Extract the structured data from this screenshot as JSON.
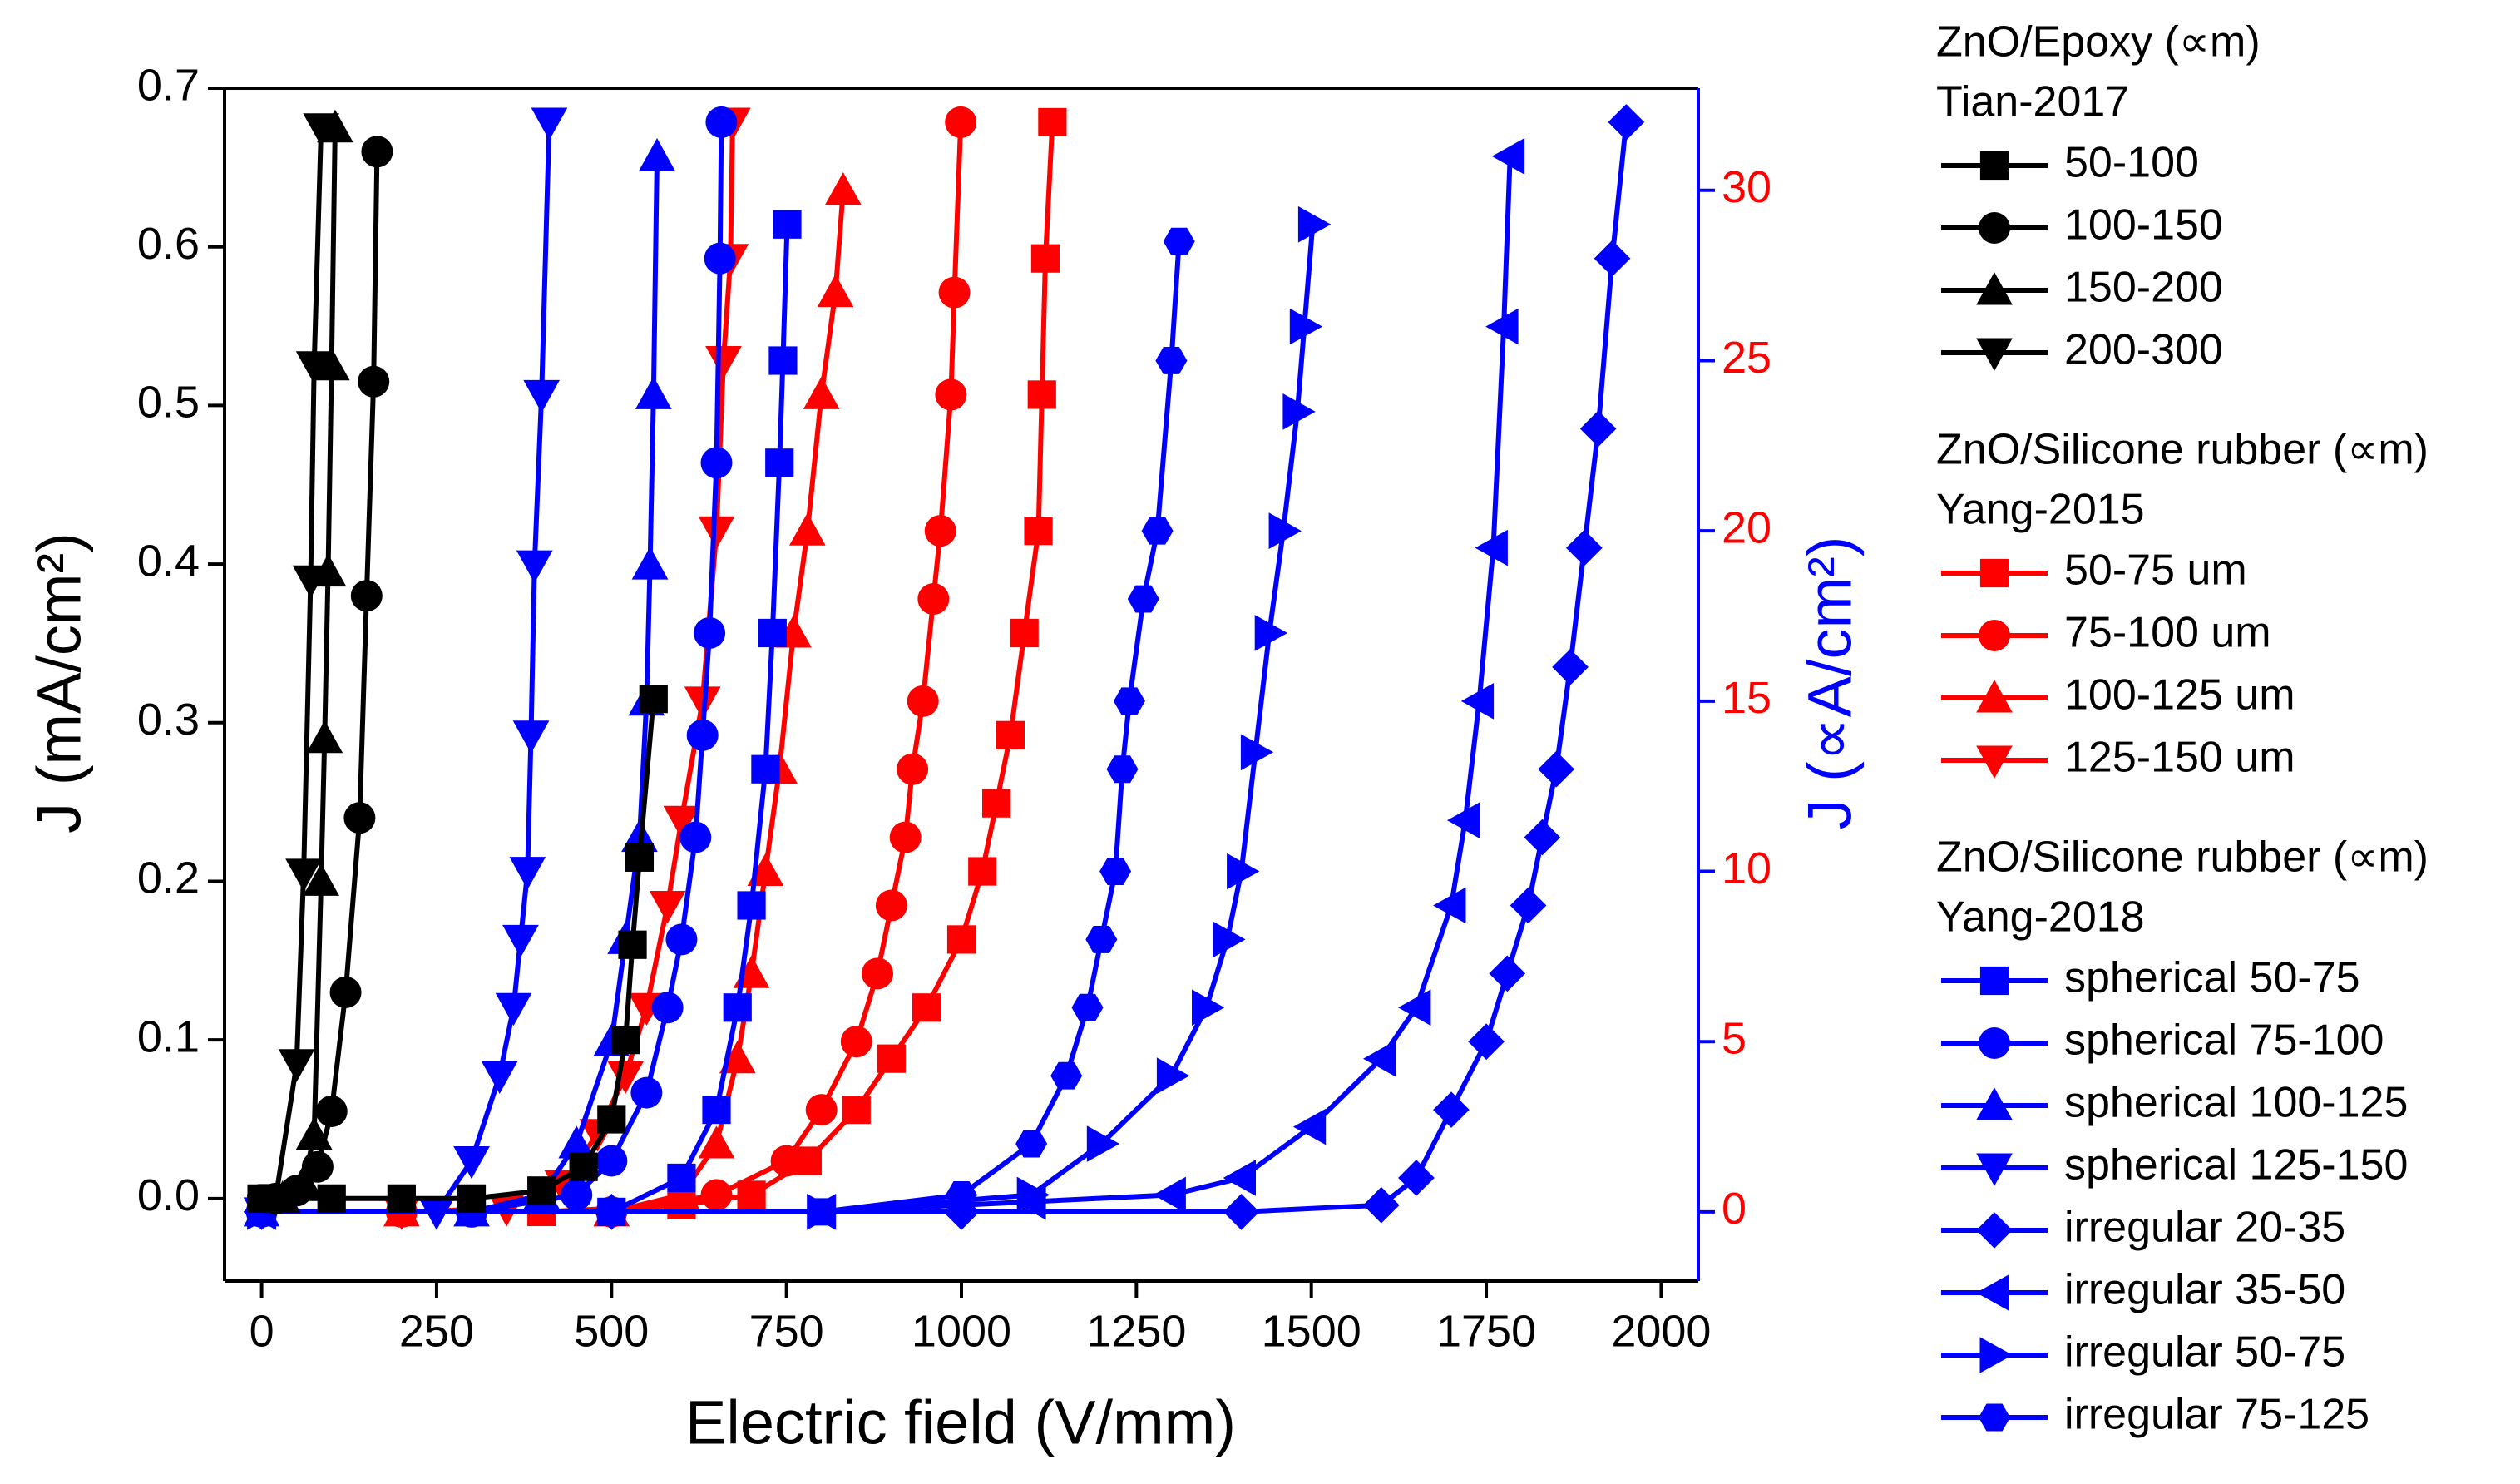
{
  "chart_data": {
    "type": "line",
    "x_label": "Electric field (V/mm)",
    "y_label": "J (mA/cm²)",
    "y2_label": "J (∝A/cm²)",
    "y2_color": "#0000ff",
    "y2_tick_color": "#ff0000",
    "xlim": [
      -53,
      2053
    ],
    "xticks": [
      0,
      250,
      500,
      750,
      1000,
      1250,
      1500,
      1750,
      2000
    ],
    "ylim": [
      -0.052,
      0.7
    ],
    "yticks": [
      {
        "value": 0,
        "label": "0.0"
      },
      0.1,
      0.2,
      0.3,
      0.4,
      0.5,
      0.6,
      0.7
    ],
    "y2lim": [
      -2.03,
      33.0
    ],
    "y2ticks": [
      0,
      5,
      10,
      15,
      20,
      25,
      30
    ],
    "groups": [
      {
        "title": "ZnO/Epoxy (∝m)",
        "subtitle": "Tian-2017",
        "series": [
          {
            "name": "50-100",
            "color": "#000000",
            "marker": "square",
            "x": [
              0,
              100,
              200,
              300,
              400,
              460,
              500,
              520,
              530,
              540,
              560
            ],
            "values": [
              0,
              0,
              0,
              0,
              0.005,
              0.02,
              0.05,
              0.1,
              0.16,
              0.215,
              0.315
            ]
          },
          {
            "name": "100-150",
            "color": "#000000",
            "marker": "circle",
            "x": [
              20,
              50,
              80,
              100,
              120,
              140,
              150,
              160,
              165
            ],
            "values": [
              0,
              0.005,
              0.02,
              0.055,
              0.13,
              0.24,
              0.38,
              0.515,
              0.66
            ]
          },
          {
            "name": "150-200",
            "color": "#000000",
            "marker": "triangle-up",
            "x": [
              30,
              60,
              75,
              85,
              90,
              95,
              100,
              105
            ],
            "values": [
              0,
              0.01,
              0.04,
              0.2,
              0.29,
              0.395,
              0.525,
              0.675
            ]
          },
          {
            "name": "200-300",
            "color": "#000000",
            "marker": "triangle-down",
            "x": [
              20,
              50,
              60,
              70,
              75,
              85
            ],
            "values": [
              0,
              0.085,
              0.205,
              0.39,
              0.525,
              0.675
            ]
          }
        ]
      },
      {
        "title": "ZnO/Silicone rubber (∝m)",
        "subtitle": "Yang-2015",
        "series": [
          {
            "name": "50-75 um",
            "color": "#ff0000",
            "marker": "square",
            "axis": "y2",
            "x": [
              200,
              400,
              600,
              700,
              780,
              850,
              900,
              950,
              1000,
              1030,
              1050,
              1070,
              1090,
              1110,
              1115,
              1120,
              1130
            ],
            "values": [
              0,
              0,
              0.2,
              0.5,
              1.5,
              3,
              4.5,
              6,
              8,
              10,
              12,
              14,
              17,
              20,
              24,
              28,
              32
            ]
          },
          {
            "name": "75-100 um",
            "color": "#ff0000",
            "marker": "circle",
            "axis": "y2",
            "x": [
              200,
              500,
              650,
              750,
              800,
              850,
              880,
              900,
              920,
              930,
              945,
              960,
              970,
              985,
              990,
              999
            ],
            "values": [
              0,
              0,
              0.5,
              1.5,
              3,
              5,
              7,
              9,
              11,
              13,
              15,
              18,
              20,
              24,
              27,
              32
            ]
          },
          {
            "name": "100-125 um",
            "color": "#ff0000",
            "marker": "triangle-up",
            "axis": "y2",
            "x": [
              200,
              500,
              600,
              650,
              680,
              700,
              720,
              740,
              760,
              780,
              800,
              820,
              831
            ],
            "values": [
              0,
              0,
              0.5,
              2,
              4.5,
              7,
              10,
              13,
              17,
              20,
              24,
              27,
              30
            ]
          },
          {
            "name": "125-150 um",
            "color": "#ff0000",
            "marker": "triangle-down",
            "axis": "y2",
            "x": [
              200,
              350,
              430,
              480,
              520,
              550,
              580,
              600,
              630,
              650,
              660,
              670,
              673
            ],
            "values": [
              0,
              0.1,
              0.8,
              2.3,
              4,
              6,
              9,
              11.5,
              15,
              20,
              25,
              28,
              32
            ]
          }
        ]
      },
      {
        "title": "ZnO/Silicone rubber (∝m)",
        "subtitle": "Yang-2018",
        "series": [
          {
            "name": "spherical 50-75",
            "color": "#0000ff",
            "marker": "square",
            "axis": "y2",
            "x": [
              0,
              300,
              500,
              600,
              650,
              680,
              700,
              720,
              730,
              740,
              745,
              751
            ],
            "values": [
              0,
              0,
              0,
              1,
              3,
              6,
              9,
              13,
              17,
              22,
              25,
              29
            ]
          },
          {
            "name": "spherical 75-100",
            "color": "#0000ff",
            "marker": "circle",
            "axis": "y2",
            "x": [
              0,
              300,
              450,
              500,
              550,
              580,
              600,
              620,
              630,
              640,
              650,
              655,
              657
            ],
            "values": [
              0,
              0,
              0.5,
              1.5,
              3.5,
              6,
              8,
              11,
              14,
              17,
              22,
              28,
              32
            ]
          },
          {
            "name": "spherical 100-125",
            "color": "#0000ff",
            "marker": "triangle-up",
            "axis": "y2",
            "x": [
              0,
              300,
              400,
              450,
              500,
              520,
              540,
              550,
              555,
              560,
              565
            ],
            "values": [
              0,
              0,
              0.5,
              2,
              5,
              8,
              11,
              15,
              19,
              24,
              31
            ]
          },
          {
            "name": "spherical 125-150",
            "color": "#0000ff",
            "marker": "triangle-down",
            "axis": "y2",
            "x": [
              0,
              250,
              300,
              340,
              360,
              370,
              380,
              385,
              390,
              400,
              411
            ],
            "values": [
              0,
              0,
              1.5,
              4,
              6,
              8,
              10,
              14,
              19,
              24,
              32
            ]
          },
          {
            "name": "irregular 20-35",
            "color": "#0000ff",
            "marker": "diamond",
            "axis": "y2",
            "x": [
              0,
              500,
              1000,
              1400,
              1600,
              1650,
              1700,
              1750,
              1780,
              1810,
              1830,
              1850,
              1870,
              1890,
              1910,
              1930,
              1950
            ],
            "values": [
              0,
              0,
              0,
              0,
              0.2,
              1,
              3,
              5,
              7,
              9,
              11,
              13,
              16,
              19.5,
              23,
              28,
              32
            ]
          },
          {
            "name": "irregular 35-50",
            "color": "#0000ff",
            "marker": "triangle-left",
            "axis": "y2",
            "x": [
              0,
              800,
              1100,
              1300,
              1400,
              1500,
              1600,
              1650,
              1700,
              1720,
              1740,
              1760,
              1775,
              1784
            ],
            "values": [
              0,
              0,
              0.3,
              0.5,
              1,
              2.5,
              4.5,
              6,
              9,
              11.5,
              15,
              19.5,
              26,
              31
            ]
          },
          {
            "name": "irregular 50-75",
            "color": "#0000ff",
            "marker": "triangle-right",
            "axis": "y2",
            "x": [
              0,
              800,
              1100,
              1200,
              1300,
              1350,
              1380,
              1400,
              1420,
              1440,
              1460,
              1480,
              1490,
              1502
            ],
            "values": [
              0,
              0,
              0.5,
              2,
              4,
              6,
              8,
              10,
              13.5,
              17,
              20,
              23.5,
              26,
              29
            ]
          },
          {
            "name": "irregular 75-125",
            "color": "#0000ff",
            "marker": "hexagon",
            "axis": "y2",
            "x": [
              0,
              800,
              1000,
              1100,
              1150,
              1180,
              1200,
              1220,
              1230,
              1240,
              1260,
              1280,
              1300,
              1311
            ],
            "values": [
              0,
              0,
              0.5,
              2,
              4,
              6,
              8,
              10,
              13,
              15,
              18,
              20,
              25,
              28.5
            ]
          }
        ]
      }
    ]
  }
}
